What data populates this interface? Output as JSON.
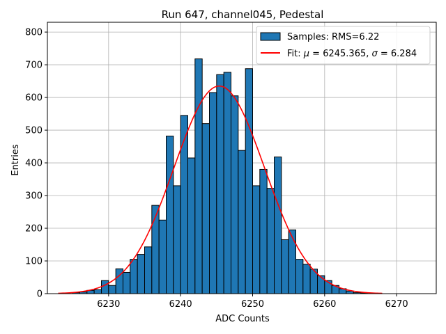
{
  "chart_data": {
    "type": "bar",
    "title": "Run 647, channel045, Pedestal",
    "xlabel": "ADC Counts",
    "ylabel": "Entries",
    "xlim": [
      6221.5,
      6275.5
    ],
    "ylim": [
      0,
      830
    ],
    "xticks": [
      6230,
      6240,
      6250,
      6260,
      6270
    ],
    "yticks": [
      0,
      100,
      200,
      300,
      400,
      500,
      600,
      700,
      800
    ],
    "grid": true,
    "legend_position": "top-right",
    "histogram": {
      "name": "Samples: RMS=6.22",
      "color": "#1f77b4",
      "edge_color": "#000000",
      "bin_width": 1,
      "bin_starts": [
        6225,
        6226,
        6227,
        6228,
        6229,
        6230,
        6231,
        6232,
        6233,
        6234,
        6235,
        6236,
        6237,
        6238,
        6239,
        6240,
        6241,
        6242,
        6243,
        6244,
        6245,
        6246,
        6247,
        6248,
        6249,
        6250,
        6251,
        6252,
        6253,
        6254,
        6255,
        6256,
        6257,
        6258,
        6259,
        6260,
        6261,
        6262,
        6263,
        6264,
        6265
      ],
      "values": [
        3,
        5,
        10,
        12,
        40,
        25,
        76,
        65,
        105,
        120,
        143,
        270,
        225,
        482,
        330,
        545,
        415,
        718,
        520,
        615,
        670,
        677,
        605,
        438,
        688,
        330,
        380,
        322,
        418,
        165,
        195,
        105,
        90,
        75,
        55,
        40,
        25,
        15,
        8,
        3,
        2
      ]
    },
    "fit": {
      "name": "Fit: μ = 6245.365, σ = 6.284",
      "name_parts": [
        "Fit: ",
        "μ",
        " = 6245.365, ",
        "σ",
        " = 6.284"
      ],
      "color": "#ff0000",
      "mu": 6245.365,
      "sigma": 6.284,
      "amplitude": 635,
      "x_range": [
        6223,
        6268
      ]
    }
  }
}
